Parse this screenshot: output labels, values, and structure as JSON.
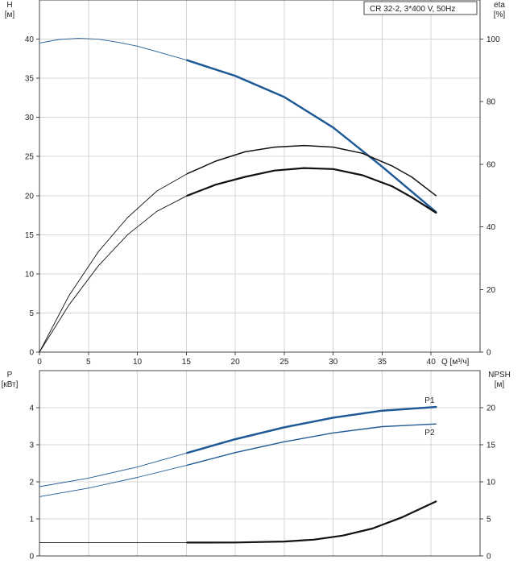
{
  "chart_data": [
    {
      "type": "line",
      "legend_box": "CR 32-2, 3*400 V, 50Hz",
      "ylabel_left": [
        "H",
        "[м]"
      ],
      "ylabel_right": [
        "eta",
        "[%]"
      ],
      "xlabel": "Q [м³/ч]",
      "xlim": [
        0,
        45
      ],
      "ylim": [
        0,
        45
      ],
      "ylim_right": [
        0,
        112.5
      ],
      "x_ticks": [
        0,
        5,
        10,
        15,
        20,
        25,
        30,
        35,
        40
      ],
      "y_ticks": [
        0,
        5,
        10,
        15,
        20,
        25,
        30,
        35,
        40
      ],
      "y_ticks_right": [
        0,
        20,
        40,
        60,
        80,
        100
      ],
      "grid": true,
      "series": [
        {
          "axis": "left",
          "color": "#1f5a96",
          "width": 2.5,
          "thin_width": 0.9,
          "bold_from_x": 15.1,
          "x": [
            0,
            2,
            4,
            6,
            8,
            10,
            12,
            15.1,
            20,
            25,
            30,
            35,
            40.5
          ],
          "y": [
            39.5,
            39.95,
            40.1,
            40,
            39.6,
            39.1,
            38.4,
            37.3,
            35.3,
            32.6,
            28.7,
            23.7,
            17.9
          ]
        },
        {
          "axis": "right",
          "color": "#111111",
          "width": 1.5,
          "thin_width": 0.9,
          "bold_from_x": 15.1,
          "x": [
            0,
            3,
            6,
            9,
            12,
            15.1,
            18,
            21,
            24,
            27,
            30,
            33,
            36,
            38,
            40.5
          ],
          "y": [
            0,
            18,
            32,
            43,
            51.5,
            57,
            61,
            64,
            65.5,
            66,
            65.5,
            63.5,
            59.5,
            56,
            50
          ]
        },
        {
          "axis": "right",
          "color": "#111111",
          "width": 2.2,
          "thin_width": 0.9,
          "bold_from_x": 15.1,
          "x": [
            0,
            3,
            6,
            9,
            12,
            15.1,
            18,
            21,
            24,
            27,
            30,
            33,
            36,
            38,
            40.5
          ],
          "y": [
            0,
            15,
            27.5,
            37.5,
            45,
            50,
            53.5,
            56,
            58,
            58.8,
            58.5,
            56.5,
            53,
            49.5,
            44.5
          ]
        }
      ]
    },
    {
      "type": "line",
      "ylabel_left": [
        "P",
        "[кВт]"
      ],
      "ylabel_right": [
        "NPSH",
        "[м]"
      ],
      "xlim": [
        0,
        45
      ],
      "ylim": [
        0,
        5
      ],
      "ylim_right": [
        0,
        25
      ],
      "y_ticks": [
        0,
        1,
        2,
        3,
        4
      ],
      "y_ticks_right": [
        0,
        5,
        10,
        15,
        20
      ],
      "grid": true,
      "series": [
        {
          "name": "P1",
          "axis": "left",
          "color": "#1f5a96",
          "width": 2.5,
          "thin_width": 0.9,
          "bold_from_x": 15.1,
          "x": [
            0,
            5,
            10,
            15.1,
            20,
            25,
            30,
            35,
            40.5
          ],
          "y": [
            1.87,
            2.1,
            2.4,
            2.78,
            3.15,
            3.47,
            3.73,
            3.92,
            4.02
          ]
        },
        {
          "name": "P2",
          "axis": "left",
          "color": "#1f5a96",
          "width": 1.4,
          "thin_width": 0.9,
          "bold_from_x": 15.1,
          "x": [
            0,
            5,
            10,
            15.1,
            20,
            25,
            30,
            35,
            40.5
          ],
          "y": [
            1.6,
            1.83,
            2.12,
            2.45,
            2.79,
            3.08,
            3.32,
            3.49,
            3.56
          ]
        },
        {
          "axis": "right",
          "color": "#111111",
          "width": 2.2,
          "thin_width": 0.9,
          "bold_from_x": 15.1,
          "x": [
            0,
            5,
            10,
            15.1,
            20,
            25,
            28,
            31,
            34,
            37,
            40.5
          ],
          "y": [
            1.8,
            1.8,
            1.8,
            1.8,
            1.82,
            1.95,
            2.2,
            2.75,
            3.7,
            5.2,
            7.35
          ]
        }
      ]
    }
  ]
}
